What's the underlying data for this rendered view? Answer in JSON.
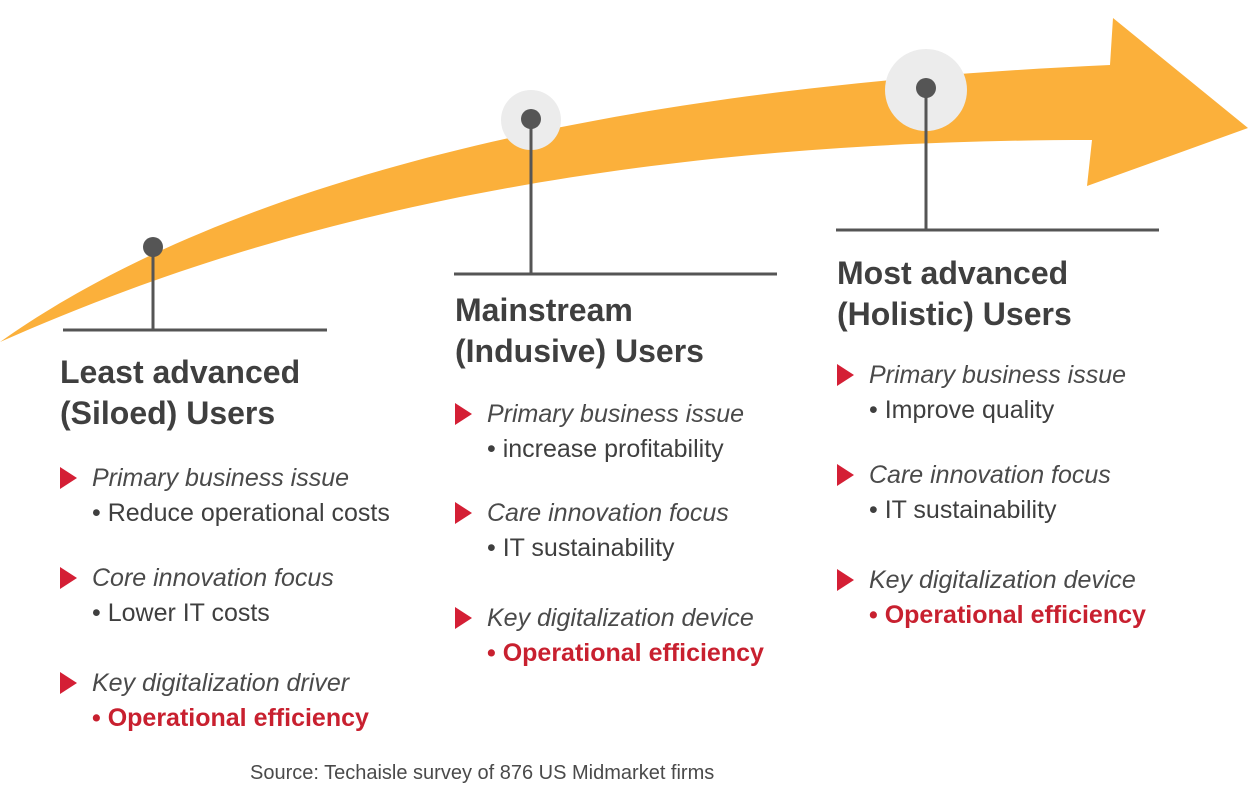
{
  "colors": {
    "arrow": "#fbb03b",
    "marker": "#d41f35",
    "highlight": "#c8202f",
    "connector": "#555555",
    "halo": "#ececec"
  },
  "stages": [
    {
      "title_line1": "Least advanced",
      "title_line2": "(Siloed) Users",
      "items": [
        {
          "label": "Primary business issue",
          "value": "Reduce operational costs"
        },
        {
          "label": "Core innovation focus",
          "value": "Lower IT costs"
        },
        {
          "label": "Key digitalization driver",
          "value": "Operational efficiency"
        }
      ]
    },
    {
      "title_line1": "Mainstream",
      "title_line2": "(Indusive) Users",
      "items": [
        {
          "label": "Primary business issue",
          "value": "increase profitability"
        },
        {
          "label": "Care innovation focus",
          "value": "IT sustainability"
        },
        {
          "label": "Key digitalization device",
          "value": "Operational efficiency"
        }
      ]
    },
    {
      "title_line1": "Most advanced",
      "title_line2": "(Holistic) Users",
      "items": [
        {
          "label": "Primary business issue",
          "value": "Improve quality"
        },
        {
          "label": "Care innovation focus",
          "value": "IT sustainability"
        },
        {
          "label": "Key digitalization device",
          "value": "Operational efficiency"
        }
      ]
    }
  ],
  "source": "Source: Techaisle survey of 876 US Midmarket firms"
}
